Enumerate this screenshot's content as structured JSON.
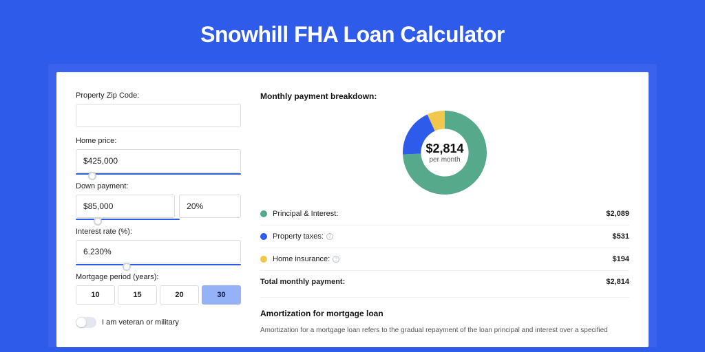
{
  "page_title": "Snowhill FHA Loan Calculator",
  "colors": {
    "page_bg": "#2f5beb",
    "outer_card_bg": "#3a62ec",
    "card_bg": "#ffffff",
    "accent": "#2f5beb",
    "period_active_bg": "#95b2f6"
  },
  "form": {
    "zip": {
      "label": "Property Zip Code:",
      "value": ""
    },
    "home_price": {
      "label": "Home price:",
      "value": "$425,000",
      "slider_pos_pct": 10
    },
    "down_payment": {
      "label": "Down payment:",
      "amount": "$85,000",
      "percent": "20%",
      "slider_pos_pct": 21
    },
    "interest_rate": {
      "label": "Interest rate (%):",
      "value": "6.230%",
      "slider_pos_pct": 31
    },
    "mortgage_period": {
      "label": "Mortgage period (years):",
      "options": [
        "10",
        "15",
        "20",
        "30"
      ],
      "selected": "30"
    },
    "veteran": {
      "label": "I am veteran or military",
      "checked": false
    }
  },
  "breakdown": {
    "title": "Monthly payment breakdown:",
    "center_amount": "$2,814",
    "center_sub": "per month",
    "items": [
      {
        "label": "Principal & Interest:",
        "value": "$2,089",
        "color": "#57a98b",
        "has_info": false
      },
      {
        "label": "Property taxes:",
        "value": "$531",
        "color": "#2f5beb",
        "has_info": true
      },
      {
        "label": "Home insurance:",
        "value": "$194",
        "color": "#f1c84c",
        "has_info": true
      }
    ],
    "total": {
      "label": "Total monthly payment:",
      "value": "$2,814"
    },
    "donut": {
      "segments": [
        {
          "color": "#57a98b",
          "fraction": 0.743
        },
        {
          "color": "#2f5beb",
          "fraction": 0.189
        },
        {
          "color": "#f1c84c",
          "fraction": 0.068
        }
      ],
      "inner_radius": 34,
      "outer_radius": 60
    }
  },
  "amortization": {
    "title": "Amortization for mortgage loan",
    "text": "Amortization for a mortgage loan refers to the gradual repayment of the loan principal and interest over a specified"
  }
}
